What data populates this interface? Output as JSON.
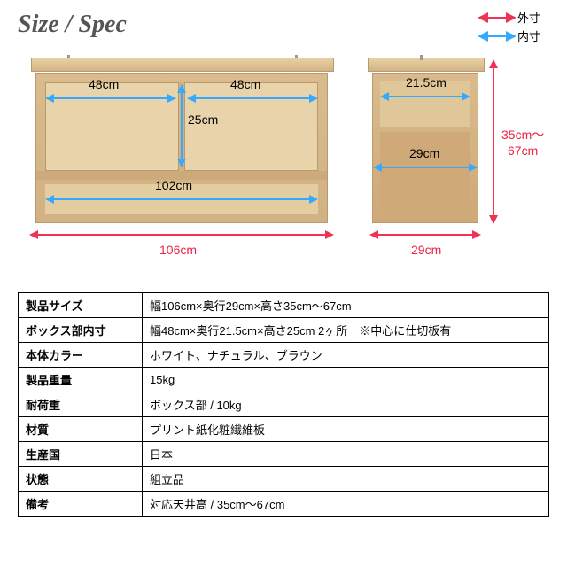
{
  "title": "Size / Spec",
  "legend": {
    "outer_label": "外寸",
    "inner_label": "内寸",
    "outer_color": "#ee3355",
    "inner_color": "#33aaff"
  },
  "diagram": {
    "colors": {
      "wood_light": "#e4cda1",
      "wood_mid": "#d2b284",
      "wood_dark": "#cfa977",
      "outer_dim": "#ee3355",
      "inner_dim": "#33aaff"
    },
    "front": {
      "inner_width_left": "48cm",
      "inner_width_right": "48cm",
      "inner_height": "25cm",
      "lower_width": "102cm",
      "outer_width": "106cm"
    },
    "side": {
      "upper_inner_width": "21.5cm",
      "lower_inner_width": "29cm",
      "outer_width": "29cm",
      "outer_height": "35cm～\n67cm"
    }
  },
  "spec_table": {
    "rows": [
      {
        "label": "製品サイズ",
        "value": "幅106cm×奥行29cm×高さ35cm～67cm"
      },
      {
        "label": "ボックス部内寸",
        "value": "幅48cm×奥行21.5cm×高さ25cm 2ヶ所　※中心に仕切板有"
      },
      {
        "label": "本体カラー",
        "value": "ホワイト、ナチュラル、ブラウン"
      },
      {
        "label": "製品重量",
        "value": "15kg"
      },
      {
        "label": "耐荷重",
        "value": "ボックス部 / 10kg"
      },
      {
        "label": "材質",
        "value": "プリント紙化粧繊維板"
      },
      {
        "label": "生産国",
        "value": "日本"
      },
      {
        "label": "状態",
        "value": "組立品"
      },
      {
        "label": "備考",
        "value": "対応天井高 / 35cm～67cm"
      }
    ]
  }
}
